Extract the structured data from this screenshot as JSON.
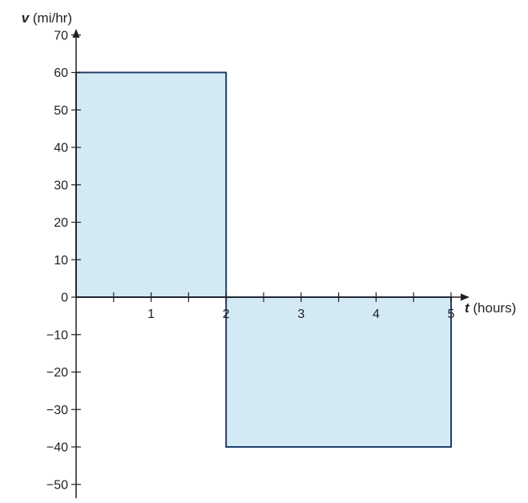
{
  "chart_data": {
    "type": "area",
    "xlabel": {
      "var": "t",
      "unit": " (hours)"
    },
    "ylabel": {
      "var": "v",
      "unit": " (mi/hr)"
    },
    "xlim": [
      0,
      5
    ],
    "ylim": [
      -53,
      74
    ],
    "x_ticks": [
      0.5,
      1,
      1.5,
      2,
      2.5,
      3,
      3.5,
      4,
      4.5,
      5
    ],
    "x_tick_labels": [
      {
        "value": 1,
        "text": "1"
      },
      {
        "value": 2,
        "text": "2"
      },
      {
        "value": 3,
        "text": "3"
      },
      {
        "value": 4,
        "text": "4"
      },
      {
        "value": 5,
        "text": "5"
      }
    ],
    "y_ticks": [
      -50,
      -40,
      -30,
      -20,
      -10,
      0,
      10,
      20,
      30,
      40,
      50,
      60,
      70
    ],
    "y_tick_labels": [
      "−50",
      "−40",
      "−30",
      "−20",
      "−10",
      "0",
      "10",
      "20",
      "30",
      "40",
      "50",
      "60",
      "70"
    ],
    "segments": [
      {
        "x": [
          0,
          2
        ],
        "y": 60
      },
      {
        "x": [
          2,
          5
        ],
        "y": -40
      }
    ],
    "grid": false,
    "colors": {
      "fill": "#d3eaf5",
      "stroke": "#1f3e69",
      "axis": "#231f20"
    }
  }
}
